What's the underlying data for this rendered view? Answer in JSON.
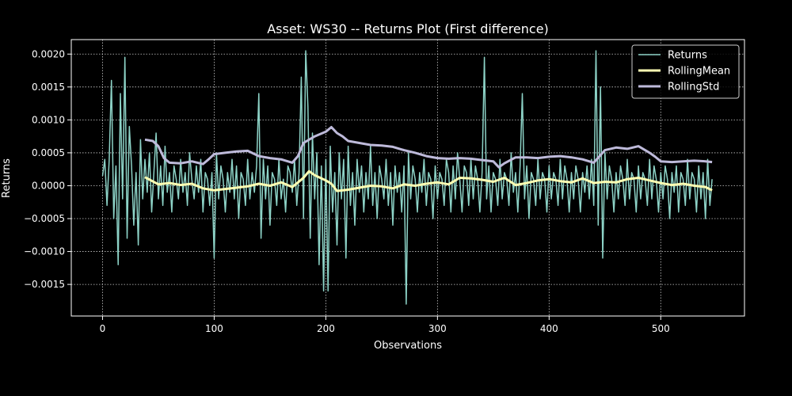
{
  "chart_data": {
    "type": "line",
    "title": "Asset: WS30 -- Returns Plot (First difference)",
    "xlabel": "Observations",
    "ylabel": "Returns",
    "xlim": [
      -28,
      575
    ],
    "ylim": [
      -0.00198,
      0.00222
    ],
    "xticks": [
      0,
      100,
      200,
      300,
      400,
      500
    ],
    "xtick_labels": [
      "0",
      "100",
      "200",
      "300",
      "400",
      "500"
    ],
    "yticks": [
      -0.0015,
      -0.001,
      -0.0005,
      0.0,
      0.0005,
      0.001,
      0.0015,
      0.002
    ],
    "ytick_labels": [
      "−0.0015",
      "−0.0010",
      "−0.0005",
      "0.0000",
      "0.0005",
      "0.0010",
      "0.0015",
      "0.0020"
    ],
    "grid": true,
    "legend_position": "top-right",
    "series": [
      {
        "name": "Returns",
        "color": "#8dd3c7",
        "x": [
          0,
          2,
          4,
          6,
          8,
          10,
          12,
          14,
          16,
          18,
          20,
          22,
          24,
          26,
          28,
          30,
          32,
          34,
          36,
          38,
          40,
          42,
          44,
          46,
          48,
          50,
          52,
          54,
          56,
          58,
          60,
          62,
          64,
          66,
          68,
          70,
          72,
          74,
          76,
          78,
          80,
          82,
          84,
          86,
          88,
          90,
          92,
          94,
          96,
          98,
          100,
          102,
          104,
          106,
          108,
          110,
          112,
          114,
          116,
          118,
          120,
          122,
          124,
          126,
          128,
          130,
          132,
          134,
          136,
          138,
          140,
          142,
          144,
          146,
          148,
          150,
          152,
          154,
          156,
          158,
          160,
          162,
          164,
          166,
          168,
          170,
          172,
          174,
          176,
          178,
          180,
          182,
          184,
          186,
          188,
          190,
          192,
          194,
          196,
          198,
          200,
          202,
          204,
          206,
          208,
          210,
          212,
          214,
          216,
          218,
          220,
          222,
          224,
          226,
          228,
          230,
          232,
          234,
          236,
          238,
          240,
          242,
          244,
          246,
          248,
          250,
          252,
          254,
          256,
          258,
          260,
          262,
          264,
          266,
          268,
          270,
          272,
          274,
          276,
          278,
          280,
          282,
          284,
          286,
          288,
          290,
          292,
          294,
          296,
          298,
          300,
          302,
          304,
          306,
          308,
          310,
          312,
          314,
          316,
          318,
          320,
          322,
          324,
          326,
          328,
          330,
          332,
          334,
          336,
          338,
          340,
          342,
          344,
          346,
          348,
          350,
          352,
          354,
          356,
          358,
          360,
          362,
          364,
          366,
          368,
          370,
          372,
          374,
          376,
          378,
          380,
          382,
          384,
          386,
          388,
          390,
          392,
          394,
          396,
          398,
          400,
          402,
          404,
          406,
          408,
          410,
          412,
          414,
          416,
          418,
          420,
          422,
          424,
          426,
          428,
          430,
          432,
          434,
          436,
          438,
          440,
          442,
          444,
          446,
          448,
          450,
          452,
          454,
          456,
          458,
          460,
          462,
          464,
          466,
          468,
          470,
          472,
          474,
          476,
          478,
          480,
          482,
          484,
          486,
          488,
          490,
          492,
          494,
          496,
          498,
          500,
          502,
          504,
          506,
          508,
          510,
          512,
          514,
          516,
          518,
          520,
          522,
          524,
          526,
          528,
          530,
          532,
          534,
          536,
          538,
          540,
          542,
          544,
          546
        ],
        "values": [
          0.00015,
          0.0004,
          -0.0003,
          0.0004,
          0.0016,
          -0.0005,
          0.0003,
          -0.0012,
          0.0014,
          -0.0002,
          0.00195,
          -0.0008,
          0.0009,
          0.0003,
          -0.0006,
          0.0002,
          -0.0009,
          0.0007,
          -0.0002,
          0.0004,
          -0.0001,
          0.0005,
          -0.0004,
          0.0002,
          0.0008,
          -0.0002,
          0.0003,
          -0.0003,
          0.0006,
          -0.0001,
          0.0002,
          -0.0004,
          0.0003,
          0.0001,
          -0.0002,
          0.0004,
          -0.0001,
          0.0002,
          -0.0003,
          0.0005,
          0.0001,
          -0.0002,
          0.0003,
          -0.0001,
          0.0004,
          -0.0004,
          0.0002,
          0.0001,
          -0.0003,
          0.0002,
          -0.0011,
          0.0005,
          -0.0002,
          0.0003,
          0.0001,
          -0.0004,
          0.0002,
          -0.0001,
          0.0004,
          -0.0002,
          0.0003,
          -0.0005,
          0.0002,
          0.0001,
          -0.0003,
          0.0004,
          -0.0002,
          0.0002,
          -0.0001,
          0.0003,
          0.0014,
          -0.0008,
          0.0004,
          -0.0002,
          0.0003,
          -0.0006,
          0.0002,
          0.0001,
          -0.0003,
          0.0004,
          -0.0002,
          0.0001,
          -0.0004,
          0.0003,
          0.0002,
          -0.0001,
          0.0004,
          -0.0003,
          0.0002,
          0.00165,
          -0.0005,
          0.00205,
          0.0012,
          -0.0008,
          0.0008,
          -0.0002,
          0.0005,
          -0.0012,
          0.0003,
          -0.0016,
          0.0004,
          -0.0016,
          0.0006,
          -0.0004,
          0.0002,
          -0.0009,
          0.0005,
          -0.0002,
          0.0004,
          -0.0011,
          0.0006,
          -0.0003,
          0.0002,
          -0.0006,
          0.0004,
          -0.0001,
          0.0003,
          -0.0004,
          0.0002,
          -0.0002,
          0.0006,
          -0.0003,
          0.0002,
          -0.0005,
          0.0003,
          0.0001,
          -0.0002,
          0.0004,
          -0.0003,
          0.0002,
          -0.0006,
          0.0003,
          -0.0001,
          0.0002,
          -0.0004,
          0.0003,
          -0.0018,
          0.0005,
          -0.0002,
          0.0003,
          0.0001,
          -0.0004,
          0.0002,
          -0.0001,
          0.0004,
          -0.0003,
          0.0002,
          0.0001,
          -0.0005,
          0.0003,
          -0.0002,
          0.0002,
          0.0001,
          -0.0003,
          0.0004,
          0.0002,
          -0.0004,
          0.0003,
          -0.0002,
          0.0005,
          0.0001,
          -0.0004,
          0.0003,
          0.0002,
          -0.0003,
          0.0004,
          -0.0002,
          0.0003,
          0.0001,
          -0.0004,
          0.0002,
          0.00195,
          -0.0002,
          0.0003,
          -0.0004,
          0.0002,
          0.0001,
          -0.0003,
          0.0004,
          -0.0002,
          0.0002,
          0.0001,
          -0.0003,
          0.0005,
          -0.0001,
          0.0002,
          -0.0004,
          0.0003,
          0.0014,
          -0.0002,
          0.0003,
          -0.0005,
          0.0002,
          0.0001,
          -0.0003,
          0.0004,
          -0.0002,
          0.0002,
          0.0001,
          -0.0004,
          0.0003,
          -0.0002,
          0.0002,
          0.0001,
          -0.0003,
          0.0004,
          -0.0002,
          0.0003,
          0.0001,
          -0.0004,
          0.0002,
          -0.0002,
          0.0003,
          0.0001,
          -0.0004,
          0.0002,
          -0.0001,
          0.0003,
          -0.0002,
          0.0004,
          -0.0003,
          0.00205,
          -0.0006,
          0.0015,
          -0.0011,
          0.0005,
          -0.0002,
          0.0003,
          0.0001,
          -0.0004,
          0.0002,
          -0.0002,
          0.0003,
          0.0001,
          -0.0003,
          0.0004,
          -0.0002,
          0.0002,
          0.0001,
          -0.0004,
          0.0003,
          -0.0002,
          0.0002,
          0.0001,
          -0.0003,
          0.0004,
          -0.0002,
          0.0003,
          0.0001,
          -0.0004,
          0.0002,
          -0.0002,
          0.0003,
          0.0001,
          -0.0005,
          0.0002,
          -0.0001,
          0.0003,
          -0.0004,
          0.0002,
          0.0001,
          -0.0003,
          0.0004,
          -0.0002,
          0.0002,
          0.0001,
          -0.0004,
          0.0003,
          -0.0002,
          0.0002,
          -0.0005,
          0.0004,
          -0.0003,
          0.0001
        ]
      },
      {
        "name": "RollingMean",
        "color": "#ffffb3",
        "x": [
          38,
          50,
          60,
          70,
          80,
          90,
          100,
          110,
          120,
          130,
          140,
          150,
          160,
          170,
          175,
          180,
          185,
          190,
          195,
          200,
          205,
          210,
          220,
          230,
          240,
          250,
          260,
          270,
          280,
          290,
          300,
          310,
          320,
          330,
          340,
          350,
          360,
          370,
          380,
          390,
          400,
          410,
          420,
          430,
          440,
          450,
          460,
          470,
          480,
          490,
          500,
          510,
          520,
          530,
          540,
          546
        ],
        "values": [
          0.00013,
          2e-05,
          4e-05,
          1e-05,
          3e-05,
          -4e-05,
          -7e-05,
          -5e-05,
          -3e-05,
          -1e-05,
          3e-05,
          0.0,
          5e-05,
          -2e-05,
          5e-05,
          0.00012,
          0.00022,
          0.00016,
          0.00012,
          8e-05,
          3e-05,
          -8e-05,
          -6e-05,
          -3e-05,
          0.0,
          -1e-05,
          -4e-05,
          2e-05,
          0.0,
          3e-05,
          5e-05,
          2e-05,
          0.00012,
          0.00011,
          9e-05,
          6e-05,
          0.00012,
          1e-05,
          4e-05,
          8e-05,
          0.0001,
          7e-05,
          5e-05,
          0.00011,
          4e-05,
          6e-05,
          5e-05,
          0.0001,
          0.00012,
          8e-05,
          4e-05,
          1e-05,
          3e-05,
          0.0,
          -2e-05,
          -7e-05
        ]
      },
      {
        "name": "RollingStd",
        "color": "#bebada",
        "x": [
          38,
          45,
          50,
          55,
          60,
          70,
          80,
          90,
          95,
          100,
          110,
          120,
          130,
          140,
          150,
          160,
          170,
          175,
          180,
          190,
          200,
          205,
          210,
          215,
          220,
          230,
          240,
          250,
          260,
          270,
          280,
          290,
          300,
          310,
          320,
          330,
          340,
          350,
          355,
          360,
          370,
          380,
          390,
          400,
          410,
          420,
          430,
          440,
          450,
          460,
          470,
          480,
          490,
          495,
          500,
          510,
          520,
          530,
          540,
          546
        ],
        "values": [
          0.0007,
          0.00068,
          0.0006,
          0.00042,
          0.00035,
          0.00034,
          0.00037,
          0.00033,
          0.0004,
          0.00048,
          0.0005,
          0.00052,
          0.00053,
          0.00045,
          0.00042,
          0.0004,
          0.00035,
          0.00045,
          0.00065,
          0.00075,
          0.00082,
          0.00089,
          0.0008,
          0.00075,
          0.00068,
          0.00065,
          0.00062,
          0.00061,
          0.00059,
          0.00054,
          0.0005,
          0.00045,
          0.00042,
          0.00041,
          0.00042,
          0.00041,
          0.00039,
          0.00037,
          0.00028,
          0.00034,
          0.00043,
          0.00043,
          0.00042,
          0.00044,
          0.00045,
          0.00043,
          0.0004,
          0.00035,
          0.00054,
          0.00058,
          0.00056,
          0.0006,
          0.0005,
          0.00044,
          0.00037,
          0.00036,
          0.00037,
          0.00038,
          0.00037,
          0.00036
        ]
      }
    ]
  }
}
